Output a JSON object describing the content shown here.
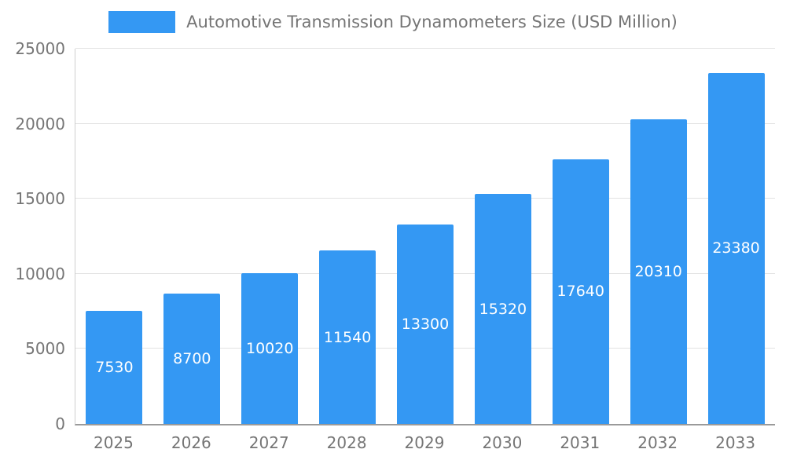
{
  "chart_data": {
    "type": "bar",
    "title": "Automotive Transmission Dynamometers Size (USD Million)",
    "categories": [
      "2025",
      "2026",
      "2027",
      "2028",
      "2029",
      "2030",
      "2031",
      "2032",
      "2033"
    ],
    "values": [
      7530,
      8700,
      10020,
      11540,
      13300,
      15320,
      17640,
      20310,
      23380
    ],
    "xlabel": "",
    "ylabel": "",
    "ylim": [
      0,
      25000
    ],
    "yticks": [
      0,
      5000,
      10000,
      15000,
      20000,
      25000
    ],
    "ytick_labels": [
      "0",
      "5000",
      "10000",
      "15000",
      "20000",
      "25000"
    ],
    "grid": true,
    "legend_position": "top",
    "bar_color": "#3498f3",
    "value_label_color": "#ffffff",
    "axis_text_color": "#757575"
  }
}
